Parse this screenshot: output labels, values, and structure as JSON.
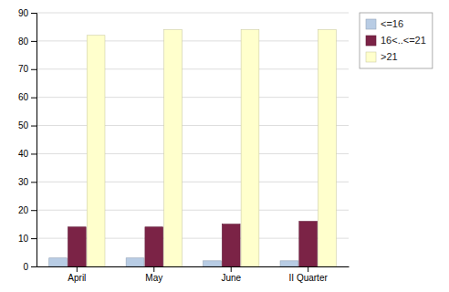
{
  "chart_data": {
    "type": "bar",
    "categories": [
      "April",
      "May",
      "June",
      "II Quarter"
    ],
    "series": [
      {
        "name": "<=16",
        "color": "#b8cce4",
        "values": [
          3,
          3,
          2,
          2
        ]
      },
      {
        "name": "16<..<=21",
        "color": "#7b2346",
        "values": [
          14,
          14,
          15,
          16
        ]
      },
      {
        "name": ">21",
        "color": "#ffffcc",
        "values": [
          82,
          84,
          84,
          84
        ]
      }
    ],
    "ylim": [
      0,
      90
    ],
    "yticks": [
      0,
      10,
      20,
      30,
      40,
      50,
      60,
      70,
      80,
      90
    ],
    "grid": true,
    "legend": "right"
  }
}
